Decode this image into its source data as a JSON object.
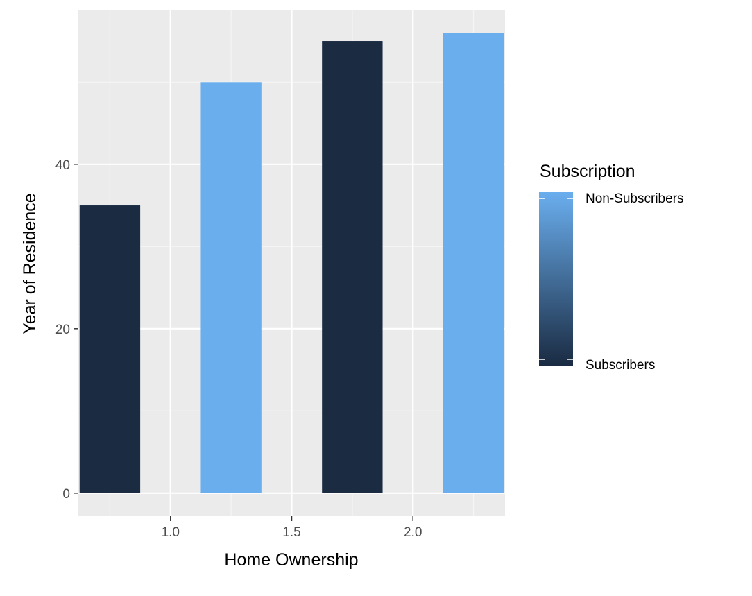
{
  "chart_data": {
    "type": "bar",
    "xlabel": "Home Ownership",
    "ylabel": "Year of Residence",
    "xlim": [
      0.62,
      2.38
    ],
    "ylim": [
      -2.8,
      58.8
    ],
    "x_ticks": [
      1.0,
      1.5,
      2.0
    ],
    "x_tick_labels": [
      "1.0",
      "1.5",
      "2.0"
    ],
    "x_minor_ticks": [
      0.75,
      1.25,
      1.75,
      2.25
    ],
    "y_ticks": [
      0,
      20,
      40
    ],
    "y_tick_labels": [
      "0",
      "20",
      "40"
    ],
    "y_minor_ticks": [
      10,
      30,
      50
    ],
    "grid": true,
    "bar_width": 0.25,
    "bars": [
      {
        "x": 0.75,
        "value": 35,
        "group": "Subscribers"
      },
      {
        "x": 1.25,
        "value": 50,
        "group": "Non-Subscribers"
      },
      {
        "x": 1.75,
        "value": 55,
        "group": "Subscribers"
      },
      {
        "x": 2.25,
        "value": 56,
        "group": "Non-Subscribers"
      }
    ],
    "legend": {
      "title": "Subscription",
      "placement": "right",
      "kind": "colorbar",
      "labels": [
        "Non-Subscribers",
        "Subscribers"
      ],
      "colors": {
        "Non-Subscribers": "#6aaeee",
        "Subscribers": "#1a2b42"
      }
    },
    "colors": {
      "panel_background": "#ebebeb",
      "grid_major": "#ffffff",
      "grid_minor": "#f5f5f5",
      "tick_text": "#4d4d4d",
      "tick_mark": "#333333"
    }
  }
}
